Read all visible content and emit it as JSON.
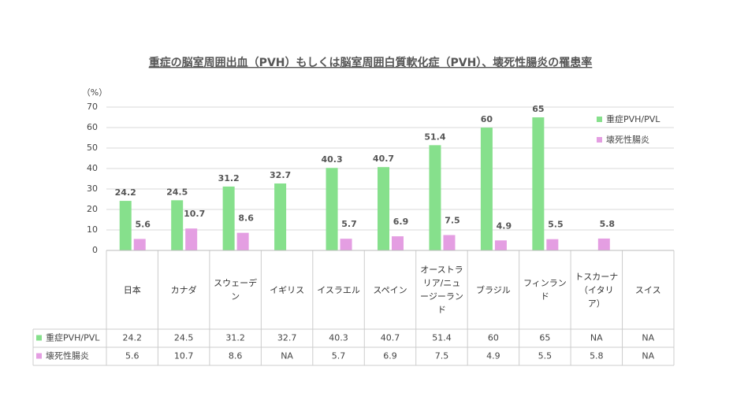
{
  "chart_data": {
    "type": "bar",
    "title": "重症の脳室周囲出血（PVH）もしくは脳室周囲白質軟化症（PVH）、壊死性腸炎の罹患率",
    "y_unit": "（%）",
    "categories": [
      "日本",
      "カナダ",
      "スウェーデン",
      "イギリス",
      "イスラエル",
      "スペイン",
      "オーストラリア/ニュージーランド",
      "ブラジル",
      "フィンランド",
      "トスカーナ（イタリア）",
      "スイス"
    ],
    "series": [
      {
        "name": "重症PVH/PVL",
        "color": "#86e08c",
        "values": [
          24.2,
          24.5,
          31.2,
          32.7,
          40.3,
          40.7,
          51.4,
          60,
          65,
          null,
          null
        ]
      },
      {
        "name": "壊死性腸炎",
        "color": "#e49ee2",
        "values": [
          5.6,
          10.7,
          8.6,
          null,
          5.7,
          6.9,
          7.5,
          4.9,
          5.5,
          5.8,
          null
        ]
      }
    ],
    "missing_label": "NA",
    "ylim": [
      0,
      70
    ],
    "yticks": [
      0,
      10,
      20,
      30,
      40,
      50,
      60,
      70
    ],
    "grid": true,
    "legend": "top-right",
    "data_table": true
  }
}
